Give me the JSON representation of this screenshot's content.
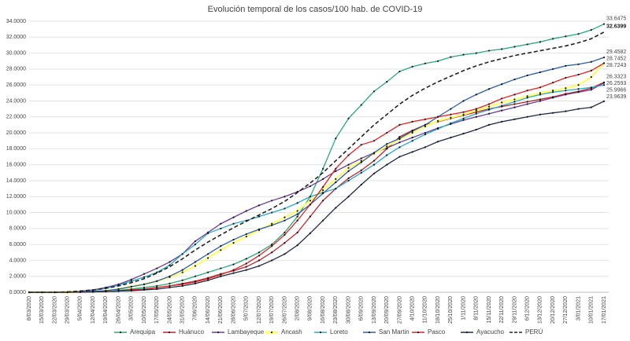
{
  "chart_data": {
    "type": "line",
    "title": "Evolución temporal de los casos/100 hab. de COVID-19",
    "categories": [
      "8/03/2020",
      "15/03/2020",
      "22/03/2020",
      "29/03/2020",
      "5/04/2020",
      "12/04/2020",
      "19/04/2020",
      "26/04/2020",
      "3/05/2020",
      "10/05/2020",
      "17/05/2020",
      "24/05/2020",
      "31/05/2020",
      "7/06/2020",
      "14/06/2020",
      "21/06/2020",
      "28/06/2020",
      "5/07/2020",
      "12/07/2020",
      "19/07/2020",
      "26/07/2020",
      "2/08/2020",
      "9/08/2020",
      "16/08/2020",
      "23/08/2020",
      "30/08/2020",
      "6/09/2020",
      "13/09/2020",
      "20/09/2020",
      "27/09/2020",
      "4/10/2020",
      "11/10/2020",
      "18/10/2020",
      "25/10/2020",
      "1/11/2020",
      "8/11/2020",
      "15/11/2020",
      "22/11/2020",
      "29/11/2020",
      "6/12/2020",
      "13/12/2020",
      "20/12/2020",
      "27/12/2020",
      "3/01/2021",
      "10/01/2021",
      "17/01/2021"
    ],
    "ylim": [
      0,
      34
    ],
    "yticks": [
      {
        "value": 0,
        "label": "0.0000"
      },
      {
        "value": 2,
        "label": "2.0000"
      },
      {
        "value": 4,
        "label": "4.0000"
      },
      {
        "value": 6,
        "label": "6.0000"
      },
      {
        "value": 8,
        "label": "8.0000"
      },
      {
        "value": 10,
        "label": "10.0000"
      },
      {
        "value": 12,
        "label": "12.0000"
      },
      {
        "value": 14,
        "label": "14.0000"
      },
      {
        "value": 16,
        "label": "16.0000"
      },
      {
        "value": 18,
        "label": "18.0000"
      },
      {
        "value": 20,
        "label": "20.0000"
      },
      {
        "value": 22,
        "label": "22.0000"
      },
      {
        "value": 24,
        "label": "24.0000"
      },
      {
        "value": 26,
        "label": "26.0000"
      },
      {
        "value": 28,
        "label": "28.0000"
      },
      {
        "value": 30,
        "label": "30.0000"
      },
      {
        "value": 32,
        "label": "32.0000"
      },
      {
        "value": 34,
        "label": "34.0000"
      }
    ],
    "grid": true,
    "legend": "bottom",
    "series": [
      {
        "name": "Arequipa",
        "color": "#2aa876",
        "values": [
          0,
          0,
          0,
          0.02,
          0.05,
          0.1,
          0.15,
          0.25,
          0.4,
          0.6,
          0.8,
          1.1,
          1.5,
          2.0,
          2.5,
          3.0,
          3.5,
          4.2,
          5.0,
          6.0,
          7.5,
          9.5,
          12.0,
          15.5,
          19.3,
          21.8,
          23.5,
          25.2,
          26.4,
          27.7,
          28.3,
          28.7,
          29.0,
          29.5,
          29.8,
          30.0,
          30.3,
          30.5,
          30.8,
          31.1,
          31.4,
          31.8,
          32.1,
          32.4,
          32.9,
          33.6475
        ],
        "value_labels": [
          null,
          null,
          null,
          null,
          null,
          null,
          null,
          null,
          null,
          null,
          null,
          null,
          null,
          null,
          null,
          null,
          null,
          null,
          null,
          null,
          null,
          null,
          null,
          null,
          null,
          null,
          null,
          null,
          null,
          null,
          null,
          null,
          null,
          null,
          null,
          null,
          null,
          null,
          null,
          null,
          null,
          null,
          null,
          null,
          null,
          "33.6475"
        ]
      },
      {
        "name": "Huánuco",
        "color": "#b8262c",
        "values": [
          0,
          0,
          0,
          0,
          0.02,
          0.05,
          0.1,
          0.2,
          0.3,
          0.4,
          0.6,
          0.8,
          1.1,
          1.4,
          1.8,
          2.3,
          2.7,
          3.2,
          4.0,
          5.0,
          6.2,
          7.5,
          9.5,
          11.5,
          13.0,
          14.3,
          15.3,
          16.5,
          18.0,
          19.5,
          20.3,
          21.0,
          21.4,
          21.8,
          22.2,
          22.6,
          23.0,
          23.3,
          23.6,
          23.9,
          24.2,
          24.5,
          24.9,
          25.2,
          25.6,
          26.3323
        ],
        "value_labels": [
          null,
          null,
          null,
          null,
          null,
          null,
          null,
          null,
          null,
          null,
          null,
          null,
          null,
          null,
          null,
          null,
          null,
          null,
          null,
          null,
          null,
          null,
          null,
          null,
          null,
          null,
          null,
          null,
          null,
          null,
          null,
          null,
          null,
          null,
          null,
          null,
          null,
          null,
          null,
          null,
          null,
          null,
          null,
          null,
          null,
          "26.3323"
        ]
      },
      {
        "name": "Lambayeque",
        "color": "#6a3d9a",
        "values": [
          0,
          0,
          0,
          0.05,
          0.15,
          0.3,
          0.6,
          1.0,
          1.6,
          2.3,
          3.0,
          3.8,
          4.8,
          6.4,
          7.5,
          8.6,
          9.4,
          10.2,
          10.9,
          11.5,
          12.0,
          12.6,
          13.3,
          14.2,
          15.2,
          16.0,
          16.8,
          17.5,
          18.1,
          18.8,
          19.4,
          20.0,
          20.6,
          21.1,
          21.6,
          22.0,
          22.4,
          22.8,
          23.2,
          23.6,
          24.0,
          24.4,
          24.8,
          25.1,
          25.4,
          26.2593
        ],
        "value_labels": [
          null,
          null,
          null,
          null,
          null,
          null,
          null,
          null,
          null,
          null,
          null,
          null,
          null,
          null,
          null,
          null,
          null,
          null,
          null,
          null,
          null,
          null,
          null,
          null,
          null,
          null,
          null,
          null,
          null,
          null,
          null,
          null,
          null,
          null,
          null,
          null,
          null,
          null,
          null,
          null,
          null,
          null,
          null,
          null,
          null,
          "26.2593"
        ]
      },
      {
        "name": "Ancash",
        "color": "#ffff66",
        "values": [
          0,
          0,
          0,
          0,
          0.05,
          0.1,
          0.2,
          0.4,
          0.7,
          1.0,
          1.4,
          1.9,
          2.5,
          3.3,
          4.3,
          5.3,
          6.2,
          7.0,
          7.8,
          8.6,
          9.4,
          10.2,
          11.5,
          12.8,
          14.2,
          15.6,
          16.5,
          17.4,
          18.3,
          19.2,
          20.0,
          20.8,
          21.5,
          21.9,
          22.3,
          22.8,
          23.3,
          23.8,
          24.2,
          24.6,
          25.0,
          25.3,
          25.6,
          26.0,
          27.0,
          28.7243
        ],
        "value_labels": [
          null,
          null,
          null,
          null,
          null,
          null,
          null,
          null,
          null,
          null,
          null,
          null,
          null,
          null,
          null,
          null,
          null,
          null,
          null,
          null,
          null,
          null,
          null,
          null,
          null,
          null,
          null,
          null,
          null,
          null,
          null,
          null,
          null,
          null,
          null,
          null,
          null,
          null,
          null,
          null,
          null,
          null,
          null,
          null,
          null,
          "28.7243"
        ]
      },
      {
        "name": "Loreto",
        "color": "#2aa7c9",
        "values": [
          0,
          0,
          0,
          0,
          0.05,
          0.2,
          0.5,
          0.9,
          1.4,
          1.9,
          2.5,
          3.4,
          4.8,
          6.0,
          7.4,
          8.0,
          8.6,
          9.0,
          9.5,
          10.0,
          10.5,
          11.2,
          12.0,
          12.5,
          13.0,
          14.0,
          15.0,
          16.0,
          17.2,
          18.2,
          19.0,
          19.8,
          20.5,
          21.2,
          21.8,
          22.4,
          22.9,
          23.4,
          23.9,
          24.4,
          24.8,
          25.1,
          25.3,
          25.5,
          25.7,
          25.9966
        ],
        "value_labels": [
          null,
          null,
          null,
          null,
          null,
          null,
          null,
          null,
          null,
          null,
          null,
          null,
          null,
          null,
          null,
          null,
          null,
          null,
          null,
          null,
          null,
          null,
          null,
          null,
          null,
          null,
          null,
          null,
          null,
          null,
          null,
          null,
          null,
          null,
          null,
          null,
          null,
          null,
          null,
          null,
          null,
          null,
          null,
          null,
          null,
          "25.9966"
        ]
      },
      {
        "name": "San Martin",
        "color": "#2a5fa8",
        "values": [
          0,
          0,
          0,
          0.02,
          0.05,
          0.1,
          0.2,
          0.4,
          0.7,
          1.0,
          1.4,
          2.0,
          2.8,
          3.8,
          4.8,
          5.8,
          6.6,
          7.3,
          7.9,
          8.4,
          9.0,
          9.8,
          11.0,
          12.4,
          13.8,
          15.2,
          16.3,
          17.5,
          18.6,
          19.3,
          20.2,
          21.0,
          22.0,
          23.0,
          24.0,
          24.8,
          25.5,
          26.1,
          26.7,
          27.2,
          27.6,
          28.0,
          28.4,
          28.6,
          28.9,
          29.4582
        ],
        "value_labels": [
          null,
          null,
          null,
          null,
          null,
          null,
          null,
          null,
          null,
          null,
          null,
          null,
          null,
          null,
          null,
          null,
          null,
          null,
          null,
          null,
          null,
          null,
          null,
          null,
          null,
          null,
          null,
          null,
          null,
          null,
          null,
          null,
          null,
          null,
          null,
          null,
          null,
          null,
          null,
          null,
          null,
          null,
          null,
          null,
          null,
          "29.4582"
        ]
      },
      {
        "name": "Pasco",
        "color": "#e02424",
        "values": [
          0,
          0,
          0,
          0,
          0.02,
          0.05,
          0.1,
          0.15,
          0.25,
          0.4,
          0.6,
          0.8,
          1.0,
          1.3,
          1.7,
          2.2,
          2.8,
          3.6,
          4.6,
          5.8,
          7.2,
          9.0,
          11.0,
          13.2,
          15.5,
          17.2,
          18.5,
          19.0,
          20.0,
          21.0,
          21.4,
          21.7,
          22.0,
          22.3,
          22.6,
          23.0,
          23.6,
          24.3,
          24.8,
          25.3,
          25.7,
          26.3,
          26.9,
          27.3,
          27.8,
          28.7452
        ],
        "value_labels": [
          null,
          null,
          null,
          null,
          null,
          null,
          null,
          null,
          null,
          null,
          null,
          null,
          null,
          null,
          null,
          null,
          null,
          null,
          null,
          null,
          null,
          null,
          null,
          null,
          null,
          null,
          null,
          null,
          null,
          null,
          null,
          null,
          null,
          null,
          null,
          null,
          null,
          null,
          null,
          null,
          null,
          null,
          null,
          null,
          null,
          "28.7452"
        ]
      },
      {
        "name": "Ayacucho",
        "color": "#1f2a44",
        "values": [
          0,
          0,
          0,
          0,
          0.02,
          0.05,
          0.1,
          0.15,
          0.2,
          0.3,
          0.4,
          0.6,
          0.8,
          1.1,
          1.5,
          2.0,
          2.4,
          2.8,
          3.3,
          4.0,
          4.8,
          5.9,
          7.4,
          9.0,
          10.6,
          12.0,
          13.5,
          14.9,
          16.0,
          17.0,
          17.6,
          18.2,
          18.9,
          19.4,
          19.9,
          20.4,
          21.0,
          21.4,
          21.7,
          22.0,
          22.3,
          22.5,
          22.7,
          23.0,
          23.2,
          23.9639
        ],
        "value_labels": [
          null,
          null,
          null,
          null,
          null,
          null,
          null,
          null,
          null,
          null,
          null,
          null,
          null,
          null,
          null,
          null,
          null,
          null,
          null,
          null,
          null,
          null,
          null,
          null,
          null,
          null,
          null,
          null,
          null,
          null,
          null,
          null,
          null,
          null,
          null,
          null,
          null,
          null,
          null,
          null,
          null,
          null,
          null,
          null,
          null,
          "23.9639"
        ]
      },
      {
        "name": "PERÚ",
        "color": "#222222",
        "dashed": true,
        "bold_label": true,
        "values": [
          0,
          0,
          0,
          0.05,
          0.15,
          0.3,
          0.5,
          0.8,
          1.2,
          1.7,
          2.4,
          3.2,
          4.2,
          5.3,
          6.3,
          7.2,
          8.1,
          8.9,
          9.7,
          10.5,
          11.4,
          12.5,
          13.7,
          15.0,
          16.5,
          18.0,
          19.5,
          21.0,
          22.3,
          23.6,
          24.7,
          25.6,
          26.4,
          27.1,
          27.8,
          28.4,
          28.9,
          29.3,
          29.7,
          30.0,
          30.3,
          30.6,
          30.9,
          31.3,
          31.8,
          32.6399
        ],
        "value_labels": [
          null,
          null,
          null,
          null,
          null,
          null,
          null,
          null,
          null,
          null,
          null,
          null,
          null,
          null,
          null,
          null,
          null,
          null,
          null,
          null,
          null,
          null,
          null,
          null,
          null,
          null,
          null,
          null,
          null,
          null,
          null,
          null,
          null,
          null,
          null,
          null,
          null,
          null,
          null,
          null,
          null,
          null,
          null,
          null,
          null,
          "32.6399"
        ]
      }
    ]
  }
}
